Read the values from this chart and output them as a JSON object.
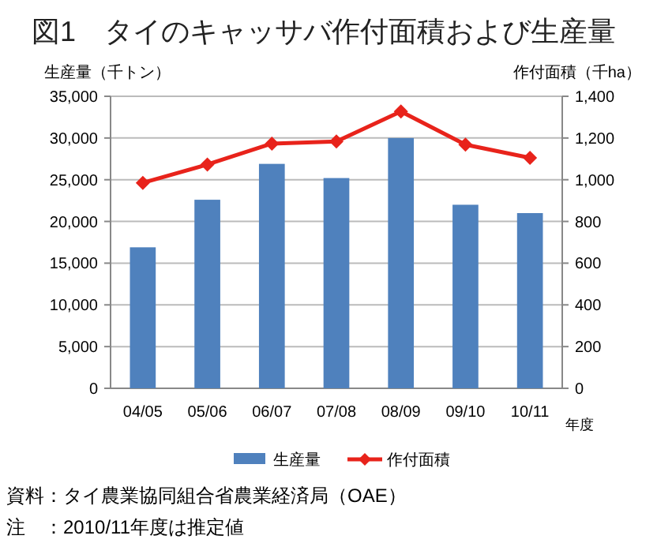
{
  "chart_data": {
    "type": "bar",
    "title": "図1　タイのキャッサバ作付面積および生産量",
    "categories": [
      "04/05",
      "05/06",
      "06/07",
      "07/08",
      "08/09",
      "09/10",
      "10/11"
    ],
    "series": [
      {
        "name": "生産量",
        "color": "#4f81bd",
        "values": [
          16900,
          22600,
          26900,
          25200,
          30000,
          22000,
          21000
        ]
      },
      {
        "name": "作付面積",
        "type": "line",
        "axis": "y2",
        "color": "#e8231b",
        "marker": "diamond",
        "values": [
          985,
          1073,
          1173,
          1183,
          1327,
          1168,
          1105
        ]
      }
    ],
    "ylabel": "生産量（千トン）",
    "y2label": "作付面積（千ha）",
    "xlabel": "年度",
    "ylim": [
      0,
      35000
    ],
    "yticks": [
      {
        "value": 0,
        "label": "0"
      },
      {
        "value": 5000,
        "label": "5,000"
      },
      {
        "value": 10000,
        "label": "10,000"
      },
      {
        "value": 15000,
        "label": "15,000"
      },
      {
        "value": 20000,
        "label": "20,000"
      },
      {
        "value": 25000,
        "label": "25,000"
      },
      {
        "value": 30000,
        "label": "30,000"
      },
      {
        "value": 35000,
        "label": "35,000"
      }
    ],
    "y2lim": [
      0,
      1400
    ],
    "y2ticks": [
      {
        "value": 0,
        "label": "0"
      },
      {
        "value": 200,
        "label": "200"
      },
      {
        "value": 400,
        "label": "400"
      },
      {
        "value": 600,
        "label": "600"
      },
      {
        "value": 800,
        "label": "800"
      },
      {
        "value": 1000,
        "label": "1,000"
      },
      {
        "value": 1200,
        "label": "1,200"
      },
      {
        "value": 1400,
        "label": "1,400"
      }
    ],
    "grid": "y",
    "legend": "bottom",
    "annotations": [
      "資料：タイ農業協同組合省農業経済局（OAE）",
      "注　：2010/11年度は推定値"
    ]
  }
}
